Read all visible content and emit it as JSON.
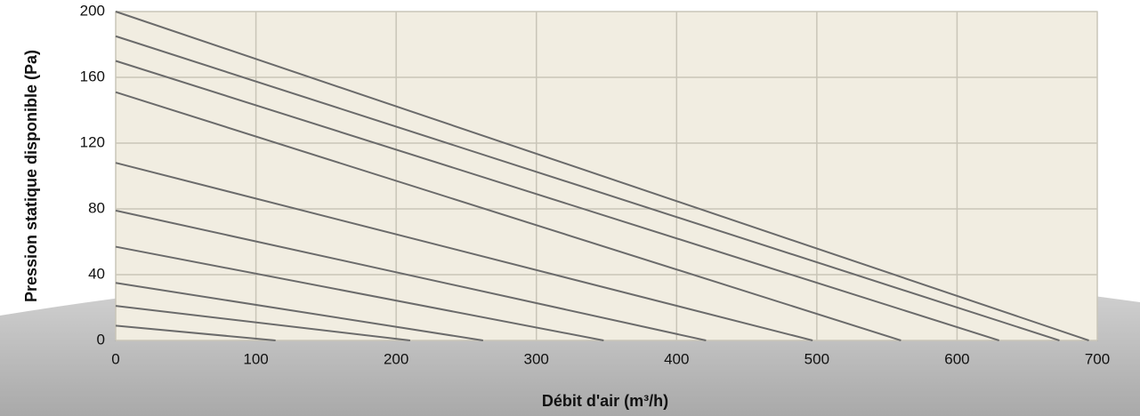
{
  "chart_data": {
    "type": "line",
    "xlabel": "Débit d'air (m³/h)",
    "ylabel": "Pression statique disponible (Pa)",
    "color": "#6b6b6b",
    "series": [
      {
        "x": [
          0,
          694
        ],
        "values": [
          200,
          0
        ]
      },
      {
        "x": [
          0,
          673
        ],
        "values": [
          185,
          0
        ]
      },
      {
        "x": [
          0,
          630
        ],
        "values": [
          170,
          0
        ]
      },
      {
        "x": [
          0,
          560
        ],
        "values": [
          151,
          0
        ]
      },
      {
        "x": [
          0,
          497
        ],
        "values": [
          108,
          0
        ]
      },
      {
        "x": [
          0,
          421
        ],
        "values": [
          79,
          0
        ]
      },
      {
        "x": [
          0,
          348
        ],
        "values": [
          57,
          0
        ]
      },
      {
        "x": [
          0,
          262
        ],
        "values": [
          35,
          0
        ]
      },
      {
        "x": [
          0,
          210
        ],
        "values": [
          21,
          0
        ]
      },
      {
        "x": [
          0,
          114
        ],
        "values": [
          9,
          0
        ]
      }
    ],
    "xlim": [
      0,
      700
    ],
    "xticks": [
      0,
      100,
      200,
      300,
      400,
      500,
      600,
      700
    ],
    "ylim": [
      0,
      200
    ],
    "yticks": [
      0,
      40,
      80,
      120,
      160,
      200
    ],
    "grid": true
  }
}
